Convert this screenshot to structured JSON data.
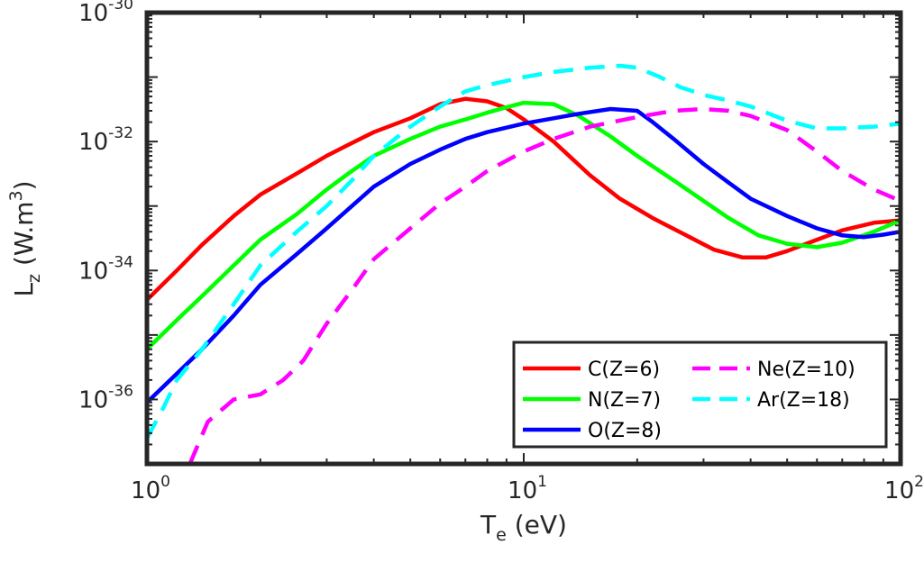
{
  "chart_data": {
    "type": "line",
    "x_scale": "log",
    "y_scale": "log",
    "xlim": [
      1,
      100
    ],
    "ylim": [
      1e-37,
      1e-30
    ],
    "grid": false,
    "legend_position": "bottom-right",
    "xlabel": {
      "main": "T",
      "sub": "e",
      "rest": " (eV)"
    },
    "ylabel": {
      "main": "L",
      "sub": "z",
      "rest": " (W.m",
      "sup": "3",
      "end": ")"
    },
    "x_ticks": [
      {
        "value": 1,
        "base": "10",
        "exp": "0"
      },
      {
        "value": 10,
        "base": "10",
        "exp": "1"
      },
      {
        "value": 100,
        "base": "10",
        "exp": "2"
      }
    ],
    "y_ticks": [
      {
        "value": 1e-36,
        "base": "10",
        "exp": "-36"
      },
      {
        "value": 1e-34,
        "base": "10",
        "exp": "-34"
      },
      {
        "value": 1e-32,
        "base": "10",
        "exp": "-32"
      },
      {
        "value": 1e-30,
        "base": "10",
        "exp": "-30"
      }
    ],
    "series": [
      {
        "name": "C(Z=6)",
        "color": "#ff0000",
        "dash": "solid",
        "points": [
          [
            1,
            3.5e-35
          ],
          [
            1.2,
            1e-34
          ],
          [
            1.4,
            2.5e-34
          ],
          [
            1.7,
            7e-34
          ],
          [
            2,
            1.5e-33
          ],
          [
            2.5,
            3.2e-33
          ],
          [
            3,
            6e-33
          ],
          [
            3.5,
            9.5e-33
          ],
          [
            4,
            1.4e-32
          ],
          [
            5,
            2.3e-32
          ],
          [
            6,
            3.8e-32
          ],
          [
            7,
            4.6e-32
          ],
          [
            8,
            4.2e-32
          ],
          [
            9,
            3.3e-32
          ],
          [
            10,
            2.2e-32
          ],
          [
            12,
            1e-32
          ],
          [
            15,
            3e-33
          ],
          [
            18,
            1.3e-33
          ],
          [
            22,
            6.5e-34
          ],
          [
            27,
            3.5e-34
          ],
          [
            32,
            2.1e-34
          ],
          [
            38,
            1.6e-34
          ],
          [
            44,
            1.6e-34
          ],
          [
            50,
            2e-34
          ],
          [
            60,
            3e-34
          ],
          [
            70,
            4.2e-34
          ],
          [
            85,
            5.5e-34
          ],
          [
            100,
            6e-34
          ]
        ]
      },
      {
        "name": "N(Z=7)",
        "color": "#00ff00",
        "dash": "solid",
        "points": [
          [
            1,
            6e-36
          ],
          [
            1.2,
            1.7e-35
          ],
          [
            1.4,
            4e-35
          ],
          [
            1.7,
            1.2e-34
          ],
          [
            2,
            3e-34
          ],
          [
            2.5,
            7.5e-34
          ],
          [
            3,
            1.8e-33
          ],
          [
            3.5,
            3.5e-33
          ],
          [
            4,
            6e-33
          ],
          [
            5,
            1.1e-32
          ],
          [
            6,
            1.7e-32
          ],
          [
            7,
            2.2e-32
          ],
          [
            8,
            2.8e-32
          ],
          [
            9,
            3.4e-32
          ],
          [
            10,
            4e-32
          ],
          [
            12,
            3.8e-32
          ],
          [
            14,
            2.5e-32
          ],
          [
            17,
            1.2e-32
          ],
          [
            20,
            6e-33
          ],
          [
            25,
            2.5e-33
          ],
          [
            30,
            1.2e-33
          ],
          [
            35,
            6.5e-34
          ],
          [
            42,
            3.5e-34
          ],
          [
            50,
            2.6e-34
          ],
          [
            60,
            2.3e-34
          ],
          [
            70,
            2.7e-34
          ],
          [
            85,
            4e-34
          ],
          [
            100,
            6e-34
          ]
        ]
      },
      {
        "name": "O(Z=8)",
        "color": "#0000ff",
        "dash": "solid",
        "points": [
          [
            1,
            9e-37
          ],
          [
            1.2,
            2.5e-36
          ],
          [
            1.4,
            6e-36
          ],
          [
            1.7,
            2e-35
          ],
          [
            2,
            6e-35
          ],
          [
            2.5,
            1.8e-34
          ],
          [
            3,
            4.5e-34
          ],
          [
            3.5,
            1e-33
          ],
          [
            4,
            2e-33
          ],
          [
            5,
            4.5e-33
          ],
          [
            6,
            7.5e-33
          ],
          [
            7,
            1.1e-32
          ],
          [
            8,
            1.4e-32
          ],
          [
            10,
            1.9e-32
          ],
          [
            12,
            2.3e-32
          ],
          [
            14,
            2.7e-32
          ],
          [
            17,
            3.2e-32
          ],
          [
            20,
            3e-32
          ],
          [
            22,
            2e-32
          ],
          [
            25,
            1.1e-32
          ],
          [
            30,
            4.5e-33
          ],
          [
            35,
            2.3e-33
          ],
          [
            40,
            1.3e-33
          ],
          [
            50,
            7e-34
          ],
          [
            60,
            4.5e-34
          ],
          [
            70,
            3.5e-34
          ],
          [
            80,
            3.3e-34
          ],
          [
            90,
            3.6e-34
          ],
          [
            100,
            4e-34
          ]
        ]
      },
      {
        "name": "Ne(Z=10)",
        "color": "#ff00ff",
        "dash": "dashed",
        "points": [
          [
            1.3,
            1e-37
          ],
          [
            1.45,
            4.5e-37
          ],
          [
            1.7,
            1e-36
          ],
          [
            2,
            1.2e-36
          ],
          [
            2.3,
            2e-36
          ],
          [
            2.6,
            4e-36
          ],
          [
            3,
            1.5e-35
          ],
          [
            3.5,
            5e-35
          ],
          [
            4,
            1.5e-34
          ],
          [
            5,
            4.5e-34
          ],
          [
            6,
            1.1e-33
          ],
          [
            7,
            2e-33
          ],
          [
            8,
            3.5e-33
          ],
          [
            10,
            7e-33
          ],
          [
            12,
            1.1e-32
          ],
          [
            15,
            1.7e-32
          ],
          [
            20,
            2.4e-32
          ],
          [
            25,
            3e-32
          ],
          [
            30,
            3.2e-32
          ],
          [
            35,
            3e-32
          ],
          [
            40,
            2.5e-32
          ],
          [
            50,
            1.5e-32
          ],
          [
            60,
            7e-33
          ],
          [
            70,
            3.5e-33
          ],
          [
            85,
            1.8e-33
          ],
          [
            100,
            1.2e-33
          ]
        ]
      },
      {
        "name": "Ar(Z=18)",
        "color": "#00ffff",
        "dash": "dashed",
        "points": [
          [
            1,
            2.5e-37
          ],
          [
            1.1,
            7e-37
          ],
          [
            1.2,
            2e-36
          ],
          [
            1.4,
            6e-36
          ],
          [
            1.7,
            3e-35
          ],
          [
            2,
            1.2e-34
          ],
          [
            2.5,
            4e-34
          ],
          [
            3,
            1e-33
          ],
          [
            3.5,
            2.5e-33
          ],
          [
            4,
            6e-33
          ],
          [
            5,
            1.7e-32
          ],
          [
            6,
            3.5e-32
          ],
          [
            7,
            6e-32
          ],
          [
            8,
            7.5e-32
          ],
          [
            10,
            1e-31
          ],
          [
            12,
            1.2e-31
          ],
          [
            15,
            1.4e-31
          ],
          [
            18,
            1.5e-31
          ],
          [
            20,
            1.4e-31
          ],
          [
            23,
            1e-31
          ],
          [
            26,
            7e-32
          ],
          [
            30,
            5.3e-32
          ],
          [
            35,
            4.3e-32
          ],
          [
            40,
            3.5e-32
          ],
          [
            50,
            2.1e-32
          ],
          [
            60,
            1.6e-32
          ],
          [
            70,
            1.6e-32
          ],
          [
            85,
            1.7e-32
          ],
          [
            100,
            1.9e-32
          ]
        ]
      }
    ]
  }
}
